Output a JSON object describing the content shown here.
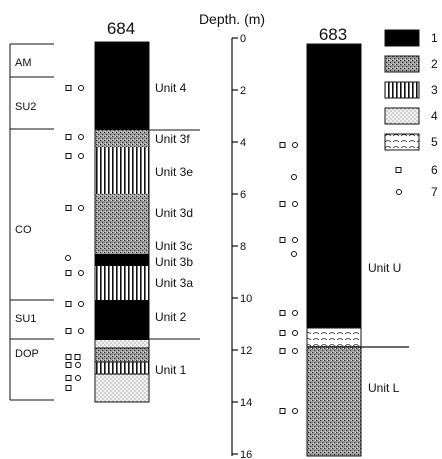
{
  "depth_axis": {
    "label": "Depth. (m)",
    "ticks": [
      "0",
      "2",
      "4",
      "6",
      "8",
      "10",
      "12",
      "14",
      "16"
    ]
  },
  "core_684": {
    "title": "684",
    "zones": [
      {
        "label": "AM"
      },
      {
        "label": "SU2"
      },
      {
        "label": "CO"
      },
      {
        "label": "SU1"
      },
      {
        "label": "DOP"
      }
    ],
    "units": [
      {
        "label": "Unit 4"
      },
      {
        "label": "Unit 3f"
      },
      {
        "label": "Unit 3e"
      },
      {
        "label": "Unit 3d"
      },
      {
        "label": "Unit 3c"
      },
      {
        "label": "Unit 3b"
      },
      {
        "label": "Unit 3a"
      },
      {
        "label": "Unit 2"
      },
      {
        "label": "Unit 1"
      }
    ]
  },
  "core_683": {
    "title": "683",
    "units": [
      {
        "label": "Unit U"
      },
      {
        "label": "Unit L"
      }
    ]
  },
  "legend": {
    "items": [
      {
        "label": "1",
        "pattern": "solid-black"
      },
      {
        "label": "2",
        "pattern": "stipple-gray"
      },
      {
        "label": "3",
        "pattern": "vertical-lines"
      },
      {
        "label": "4",
        "pattern": "fine-dots"
      },
      {
        "label": "5",
        "pattern": "open-scallops"
      },
      {
        "label": "6",
        "pattern": "square-symbol"
      },
      {
        "label": "7",
        "pattern": "circle-symbol"
      }
    ]
  }
}
